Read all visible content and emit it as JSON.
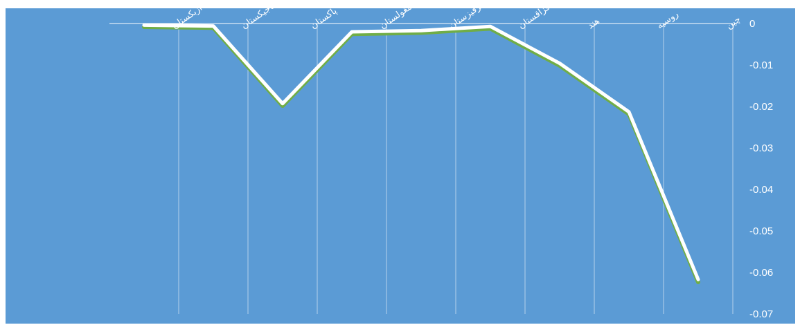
{
  "chart_data": {
    "type": "line",
    "categories": [
      "ازبکستان",
      "تاجیکستان",
      "پاکستان",
      "مغولستان",
      "قرقیزستان",
      "قزاقستان",
      "هند",
      "روسیه",
      "چین"
    ],
    "series": [
      {
        "values": [
          -0.0005,
          -0.0007,
          -0.0195,
          -0.0022,
          -0.0019,
          -0.0009,
          -0.0098,
          -0.0215,
          -0.062
        ],
        "color": "#70ad47"
      },
      {
        "values": [
          -0.0004,
          -0.0006,
          -0.0193,
          -0.002,
          -0.0017,
          -0.0007,
          -0.0096,
          -0.0213,
          -0.0617
        ],
        "color": "#ffffff"
      }
    ],
    "yticks": [
      "0",
      "-0.01",
      "-0.02",
      "-0.03",
      "-0.04",
      "-0.05",
      "-0.06",
      "-0.07"
    ],
    "ylim": [
      -0.07,
      0
    ],
    "y_axis_position": "right",
    "grid": "vertical",
    "background": "#5b9bd5",
    "title": "",
    "xlabel": "",
    "ylabel": ""
  }
}
